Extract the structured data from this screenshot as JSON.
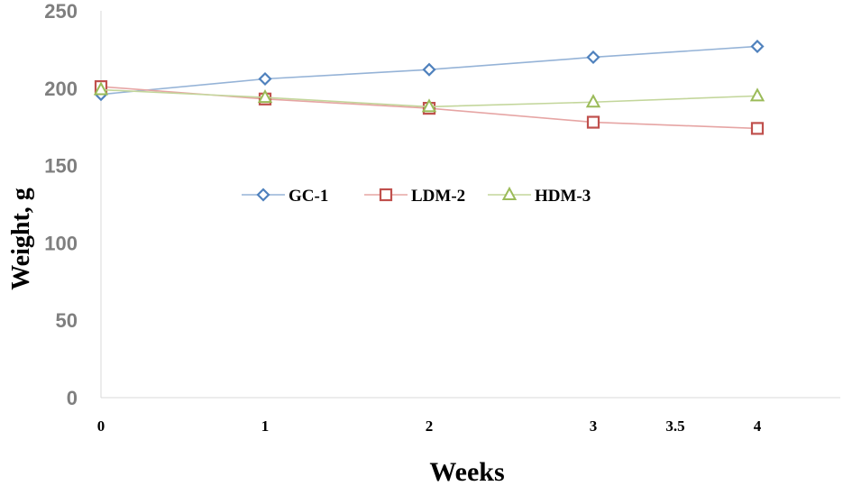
{
  "chart_data": {
    "type": "line",
    "title": "",
    "xlabel": "Weeks",
    "ylabel": "Weight, g",
    "ylim": [
      0,
      250
    ],
    "xlim": [
      0,
      4.5
    ],
    "y_ticks": [
      0,
      50,
      100,
      150,
      200,
      250
    ],
    "y_tick_labels": [
      "0",
      "50",
      "100",
      "150",
      "200",
      "250"
    ],
    "x_ticks": [
      0,
      1,
      2,
      3,
      3.5,
      4
    ],
    "x_tick_labels": [
      "0",
      "1",
      "2",
      "3",
      "3.5",
      "4"
    ],
    "grid": false,
    "legend_position": "center-left",
    "series": [
      {
        "name": "GC-1",
        "marker": "diamond",
        "color": "#4f81bd",
        "line_color": "#95b3d7",
        "x": [
          0,
          1,
          2,
          3,
          4
        ],
        "values": [
          196,
          206,
          212,
          220,
          227
        ]
      },
      {
        "name": "LDM-2",
        "marker": "square",
        "color": "#c0504d",
        "line_color": "#e6a5a4",
        "x": [
          0,
          1,
          2,
          3,
          4
        ],
        "values": [
          201,
          193,
          187,
          178,
          174
        ]
      },
      {
        "name": "HDM-3",
        "marker": "triangle",
        "color": "#9bbb59",
        "line_color": "#c3d69b",
        "x": [
          0,
          1,
          2,
          3,
          4
        ],
        "values": [
          199,
          194,
          188,
          191,
          195
        ]
      }
    ]
  }
}
